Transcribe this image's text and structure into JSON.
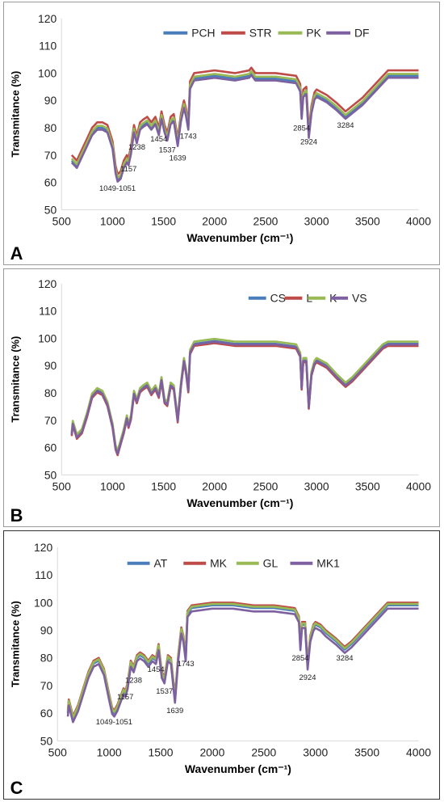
{
  "colors": {
    "blue": "#4a7ebb",
    "red": "#be4b48",
    "green": "#98b954",
    "purple": "#7d60a0",
    "axis": "#d9d9d9"
  },
  "chart_data": [
    {
      "type": "line",
      "panel_label": "A",
      "xlabel": "Wavenumber (cm⁻¹)",
      "ylabel": "Transmitance (%)",
      "xlim": [
        500,
        4000
      ],
      "ylim": [
        50,
        120
      ],
      "xticks": [
        500,
        1000,
        1500,
        2000,
        2500,
        3000,
        3500,
        4000
      ],
      "yticks": [
        50,
        60,
        70,
        80,
        90,
        100,
        110,
        120
      ],
      "legend": {
        "placement": "top-right"
      },
      "series": [
        {
          "name": "PCH",
          "color": "#4a7ebb",
          "offset": 0
        },
        {
          "name": "STR",
          "color": "#be4b48",
          "offset": 2
        },
        {
          "name": "PK",
          "color": "#98b954",
          "offset": 0.7
        },
        {
          "name": "DF",
          "color": "#7d60a0",
          "offset": -0.7
        }
      ],
      "x": [
        600,
        650,
        700,
        750,
        800,
        850,
        900,
        950,
        1000,
        1030,
        1050,
        1080,
        1110,
        1140,
        1157,
        1180,
        1210,
        1238,
        1270,
        1300,
        1340,
        1380,
        1420,
        1454,
        1480,
        1510,
        1537,
        1570,
        1600,
        1639,
        1670,
        1700,
        1720,
        1743,
        1760,
        1800,
        2000,
        2200,
        2340,
        2360,
        2400,
        2600,
        2800,
        2840,
        2854,
        2870,
        2900,
        2924,
        2950,
        2980,
        3000,
        3050,
        3100,
        3200,
        3284,
        3350,
        3450,
        3550,
        3650,
        3700,
        3800,
        4000
      ],
      "base": [
        68,
        66,
        70,
        74,
        78,
        80,
        80,
        79,
        73,
        64,
        61,
        62,
        66,
        68,
        67,
        71,
        79,
        75,
        80,
        81,
        82,
        80,
        82,
        78,
        84,
        79,
        76,
        82,
        83,
        74,
        83,
        88,
        85,
        80,
        95,
        98,
        99,
        98,
        99,
        100,
        98,
        98,
        97,
        94,
        84,
        92,
        93,
        77,
        86,
        91,
        92,
        91,
        90,
        87,
        84,
        86,
        89,
        93,
        97,
        99,
        99,
        99
      ],
      "annotations": [
        {
          "text": "1049-1051",
          "x": 1049,
          "y": 57
        },
        {
          "text": "1157",
          "x": 1157,
          "y": 64
        },
        {
          "text": "1238",
          "x": 1238,
          "y": 72
        },
        {
          "text": "1454",
          "x": 1454,
          "y": 75
        },
        {
          "text": "1537",
          "x": 1537,
          "y": 71
        },
        {
          "text": "1639",
          "x": 1639,
          "y": 68
        },
        {
          "text": "1743",
          "x": 1743,
          "y": 76
        },
        {
          "text": "2854",
          "x": 2854,
          "y": 79
        },
        {
          "text": "2924",
          "x": 2924,
          "y": 74
        },
        {
          "text": "3284",
          "x": 3284,
          "y": 80
        }
      ]
    },
    {
      "type": "line",
      "panel_label": "B",
      "xlabel": "Wavenumber (cm⁻¹)",
      "ylabel": "Transmitance (%)",
      "xlim": [
        500,
        4000
      ],
      "ylim": [
        50,
        120
      ],
      "xticks": [
        500,
        1000,
        1500,
        2000,
        2500,
        3000,
        3500,
        4000
      ],
      "yticks": [
        50,
        60,
        70,
        80,
        90,
        100,
        110,
        120
      ],
      "legend": {
        "placement": "top-right"
      },
      "series": [
        {
          "name": "CS",
          "color": "#4a7ebb",
          "offset": 0
        },
        {
          "name": "L",
          "color": "#be4b48",
          "offset": -0.8
        },
        {
          "name": "K",
          "color": "#98b954",
          "offset": 0.8
        },
        {
          "name": "VS",
          "color": "#7d60a0",
          "offset": -0.3
        }
      ],
      "x": [
        600,
        610,
        650,
        700,
        750,
        800,
        850,
        900,
        950,
        1000,
        1030,
        1050,
        1080,
        1110,
        1140,
        1157,
        1180,
        1210,
        1238,
        1270,
        1300,
        1340,
        1380,
        1420,
        1454,
        1480,
        1510,
        1537,
        1570,
        1600,
        1639,
        1670,
        1700,
        1720,
        1743,
        1760,
        1800,
        2000,
        2200,
        2400,
        2600,
        2800,
        2840,
        2854,
        2870,
        2900,
        2924,
        2950,
        2980,
        3000,
        3050,
        3100,
        3200,
        3284,
        3350,
        3450,
        3550,
        3650,
        3700,
        3800,
        4000
      ],
      "base": [
        65,
        69,
        64,
        66,
        72,
        79,
        81,
        80,
        76,
        68,
        60,
        58,
        62,
        66,
        71,
        68,
        71,
        80,
        77,
        81,
        82,
        83,
        80,
        82,
        79,
        85,
        77,
        76,
        83,
        82,
        70,
        83,
        92,
        88,
        81,
        95,
        98,
        99,
        98,
        98,
        98,
        97,
        94,
        82,
        92,
        92,
        75,
        87,
        91,
        92,
        91,
        90,
        86,
        83,
        85,
        89,
        93,
        97,
        98,
        98,
        98
      ]
    },
    {
      "type": "line",
      "panel_label": "C",
      "xlabel": "Wavenumber (cm⁻¹)",
      "ylabel": "Transmitance (%)",
      "xlim": [
        500,
        4000
      ],
      "ylim": [
        50,
        120
      ],
      "xticks": [
        500,
        1000,
        1500,
        2000,
        2500,
        3000,
        3500,
        4000
      ],
      "yticks": [
        50,
        60,
        70,
        80,
        90,
        100,
        110,
        120
      ],
      "legend": {
        "placement": "top-center"
      },
      "series": [
        {
          "name": "AT",
          "color": "#4a7ebb",
          "offset": 0
        },
        {
          "name": "MK",
          "color": "#be4b48",
          "offset": 1
        },
        {
          "name": "GL",
          "color": "#98b954",
          "offset": 0.5
        },
        {
          "name": "MK1",
          "color": "#7d60a0",
          "offset": -1.2
        }
      ],
      "x": [
        600,
        610,
        650,
        700,
        750,
        800,
        850,
        900,
        950,
        1000,
        1030,
        1050,
        1080,
        1110,
        1140,
        1157,
        1180,
        1210,
        1238,
        1270,
        1300,
        1340,
        1380,
        1420,
        1454,
        1480,
        1510,
        1537,
        1570,
        1600,
        1639,
        1670,
        1700,
        1720,
        1743,
        1760,
        1800,
        2000,
        2200,
        2400,
        2600,
        2800,
        2840,
        2854,
        2870,
        2900,
        2924,
        2950,
        2980,
        3000,
        3050,
        3100,
        3200,
        3284,
        3350,
        3450,
        3550,
        3650,
        3700,
        3800,
        4000
      ],
      "base": [
        60,
        64,
        58,
        62,
        68,
        74,
        78,
        79,
        75,
        66,
        61,
        60,
        62,
        65,
        68,
        67,
        70,
        78,
        76,
        80,
        81,
        80,
        78,
        80,
        79,
        84,
        74,
        72,
        80,
        79,
        65,
        80,
        90,
        87,
        80,
        96,
        98,
        99,
        99,
        98,
        98,
        97,
        94,
        84,
        92,
        92,
        77,
        87,
        91,
        92,
        91,
        89,
        86,
        83,
        85,
        89,
        93,
        97,
        99,
        99,
        99
      ],
      "annotations": [
        {
          "text": "1049-1051",
          "x": 1049,
          "y": 56
        },
        {
          "text": "1157",
          "x": 1157,
          "y": 65
        },
        {
          "text": "1238",
          "x": 1238,
          "y": 71
        },
        {
          "text": "1454",
          "x": 1454,
          "y": 75
        },
        {
          "text": "1537",
          "x": 1537,
          "y": 67
        },
        {
          "text": "1639",
          "x": 1639,
          "y": 60
        },
        {
          "text": "1743",
          "x": 1743,
          "y": 77
        },
        {
          "text": "2854",
          "x": 2854,
          "y": 79
        },
        {
          "text": "2924",
          "x": 2924,
          "y": 72
        },
        {
          "text": "3284",
          "x": 3284,
          "y": 79
        }
      ]
    }
  ]
}
